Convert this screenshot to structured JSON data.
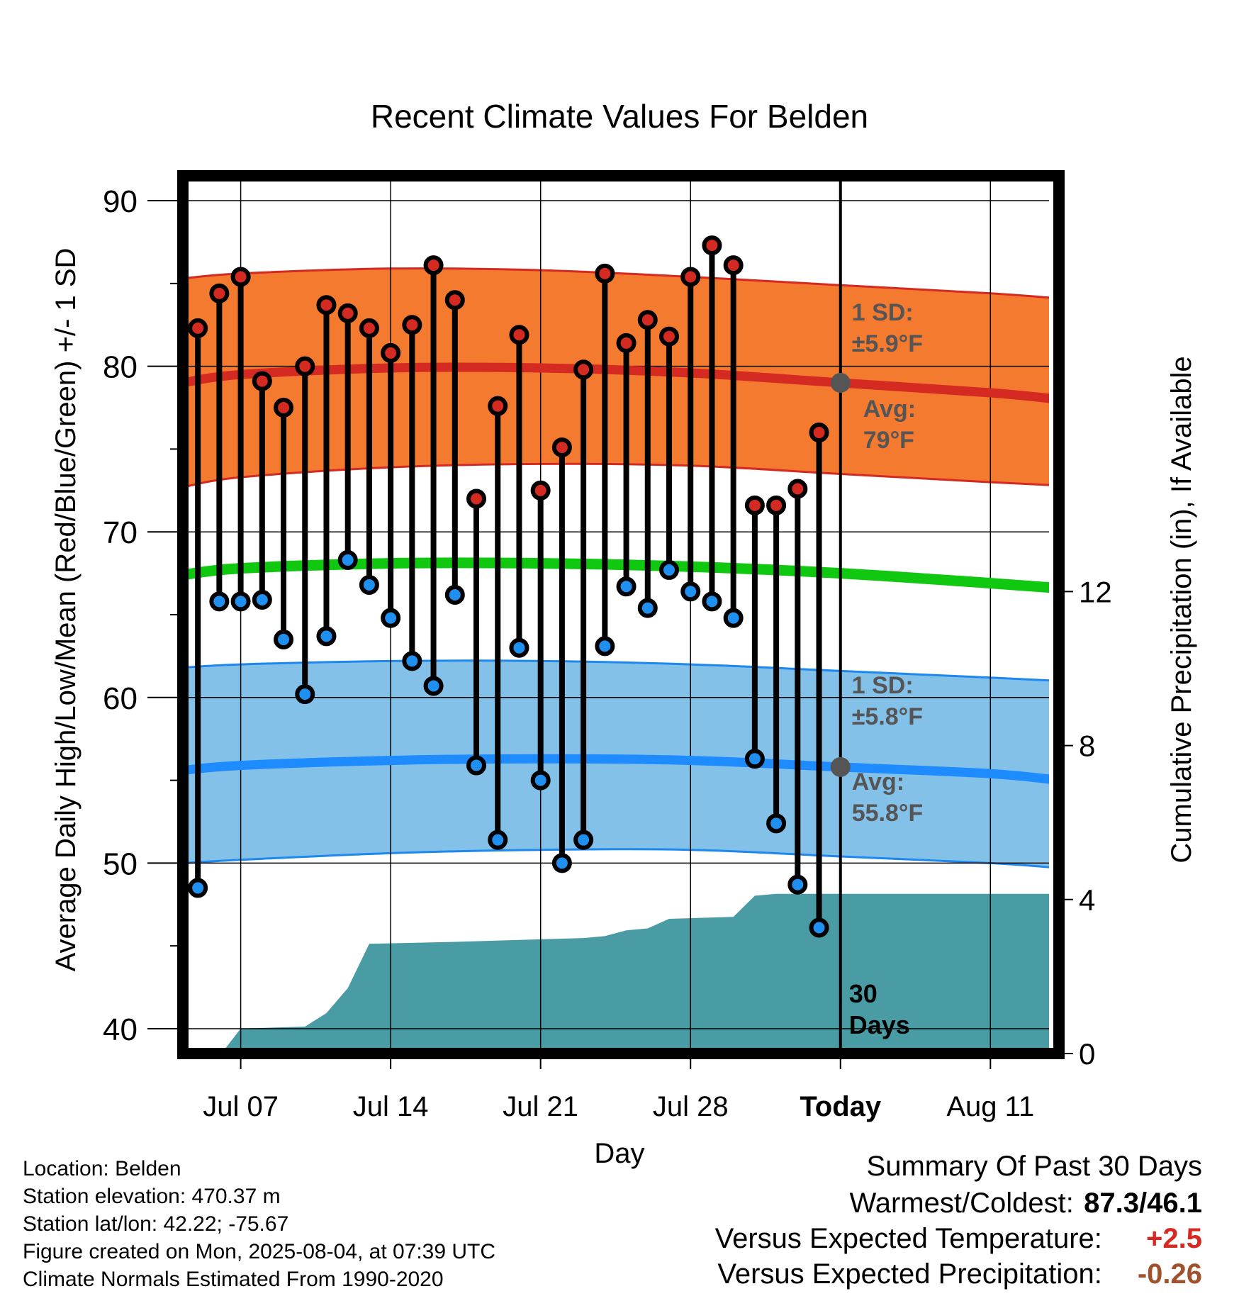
{
  "colors": {
    "high_band": "#f47a30",
    "high_edge": "#d42a22",
    "high_avg": "#d42a22",
    "mean": "#11c811",
    "low_band": "#84c1e8",
    "low_edge": "#1e88ee",
    "low_avg": "#1e8cff",
    "precip": "#4a9ca4",
    "high_dot": "#d42a22",
    "low_dot": "#2090f0",
    "today_dot": "#555555",
    "annotation": "#555555",
    "temp_anomaly": "#d42a22",
    "precip_anomaly": "#a0522d"
  },
  "chart_data": {
    "type": "line",
    "title": "Recent Climate Values For Belden",
    "xlabel": "Day",
    "ylabel": "Average Daily High/Low/Mean (Red/Blue/Green) +/- 1 SD",
    "y2label": "Cumulative Precipitation (in), If Available",
    "ylim": [
      38.5,
      91.5
    ],
    "y_ticks": [
      40,
      50,
      60,
      70,
      80,
      90
    ],
    "y2lim": [
      0,
      22.8
    ],
    "y2_ticks": [
      0,
      4,
      8,
      12
    ],
    "x_ticks": [
      {
        "day": 7,
        "label": "Jul 07"
      },
      {
        "day": 14,
        "label": "Jul 14"
      },
      {
        "day": 21,
        "label": "Jul 21"
      },
      {
        "day": 28,
        "label": "Jul 28"
      },
      {
        "day": 35,
        "label": "Today"
      },
      {
        "day": 42,
        "label": "Aug 11"
      }
    ],
    "xlim": [
      4.3,
      45.2
    ],
    "today": 35,
    "window_label": "30 Days",
    "days": [
      5,
      6,
      7,
      8,
      9,
      10,
      11,
      12,
      13,
      14,
      15,
      16,
      17,
      18,
      19,
      20,
      21,
      22,
      23,
      24,
      25,
      26,
      27,
      28,
      29,
      30,
      31,
      32,
      33,
      34
    ],
    "high": [
      82.3,
      84.4,
      85.4,
      79.1,
      77.5,
      80.0,
      83.7,
      83.2,
      82.3,
      80.8,
      82.5,
      86.1,
      84.0,
      72.0,
      77.6,
      81.9,
      72.5,
      75.1,
      79.8,
      85.6,
      81.4,
      82.8,
      81.8,
      85.4,
      87.3,
      86.1,
      71.6,
      71.6,
      72.6,
      76.0
    ],
    "low": [
      48.5,
      65.8,
      65.8,
      65.9,
      63.5,
      60.2,
      63.7,
      68.3,
      66.8,
      64.8,
      62.2,
      60.7,
      66.2,
      55.9,
      51.4,
      63.0,
      55.0,
      50.0,
      51.4,
      63.1,
      66.7,
      65.4,
      67.7,
      66.4,
      65.8,
      64.8,
      56.3,
      52.4,
      48.7,
      46.1
    ],
    "normals": {
      "days": [
        4.3,
        7,
        14,
        21,
        28,
        35,
        42,
        45.2
      ],
      "high_avg": [
        79.0,
        79.5,
        79.9,
        79.9,
        79.6,
        79.0,
        78.4,
        78.0
      ],
      "high_sd_upper": [
        85.3,
        85.6,
        85.9,
        85.8,
        85.4,
        84.9,
        84.4,
        84.1
      ],
      "high_sd_lower": [
        72.7,
        73.3,
        73.9,
        74.1,
        74.0,
        73.5,
        73.0,
        72.8
      ],
      "mean": [
        67.4,
        67.8,
        68.1,
        68.1,
        67.9,
        67.5,
        66.9,
        66.6
      ],
      "low_avg": [
        55.6,
        55.9,
        56.2,
        56.3,
        56.2,
        55.8,
        55.4,
        55.0
      ],
      "low_sd_upper": [
        61.8,
        62.0,
        62.2,
        62.2,
        62.0,
        61.6,
        61.2,
        61.0
      ],
      "low_sd_lower": [
        50.0,
        50.2,
        50.6,
        50.8,
        50.8,
        50.4,
        50.0,
        49.7
      ]
    },
    "precip_cumulative": [
      {
        "day": 6.1,
        "value": 0.0
      },
      {
        "day": 7.0,
        "value": 0.65
      },
      {
        "day": 10.0,
        "value": 0.7
      },
      {
        "day": 11.0,
        "value": 1.05
      },
      {
        "day": 12.0,
        "value": 1.7
      },
      {
        "day": 13.0,
        "value": 2.85
      },
      {
        "day": 17.0,
        "value": 2.9
      },
      {
        "day": 20.0,
        "value": 2.95
      },
      {
        "day": 23.0,
        "value": 3.0
      },
      {
        "day": 24.0,
        "value": 3.05
      },
      {
        "day": 25.0,
        "value": 3.2
      },
      {
        "day": 26.0,
        "value": 3.25
      },
      {
        "day": 27.0,
        "value": 3.5
      },
      {
        "day": 30.0,
        "value": 3.55
      },
      {
        "day": 31.0,
        "value": 4.1
      },
      {
        "day": 32.0,
        "value": 4.15
      },
      {
        "day": 45.2,
        "value": 4.15
      }
    ],
    "annotations": {
      "high_sd": {
        "title": "1 SD:",
        "value": "±5.9°F"
      },
      "high_avg": {
        "title": "Avg:",
        "value": "79°F"
      },
      "low_sd": {
        "title": "1 SD:",
        "value": "±5.8°F"
      },
      "low_avg": {
        "title": "Avg:",
        "value": "55.8°F"
      }
    }
  },
  "location": {
    "name_line": "Location: Belden",
    "elevation_line": "Station elevation: 470.37 m",
    "latlon_line": "Station lat/lon: 42.22; -75.67",
    "created_line": "Figure created on Mon, 2025-08-04, at 07:39 UTC",
    "normals_line": "Climate Normals Estimated From 1990-2020"
  },
  "summary": {
    "title": "Summary Of Past 30 Days",
    "warmest_label": "Warmest/Coldest:",
    "warmest_value": "87.3/46.1",
    "temp_label": "Versus Expected Temperature:",
    "temp_value": "+2.5",
    "precip_label": "Versus Expected Precipitation:",
    "precip_value": "-0.26"
  }
}
